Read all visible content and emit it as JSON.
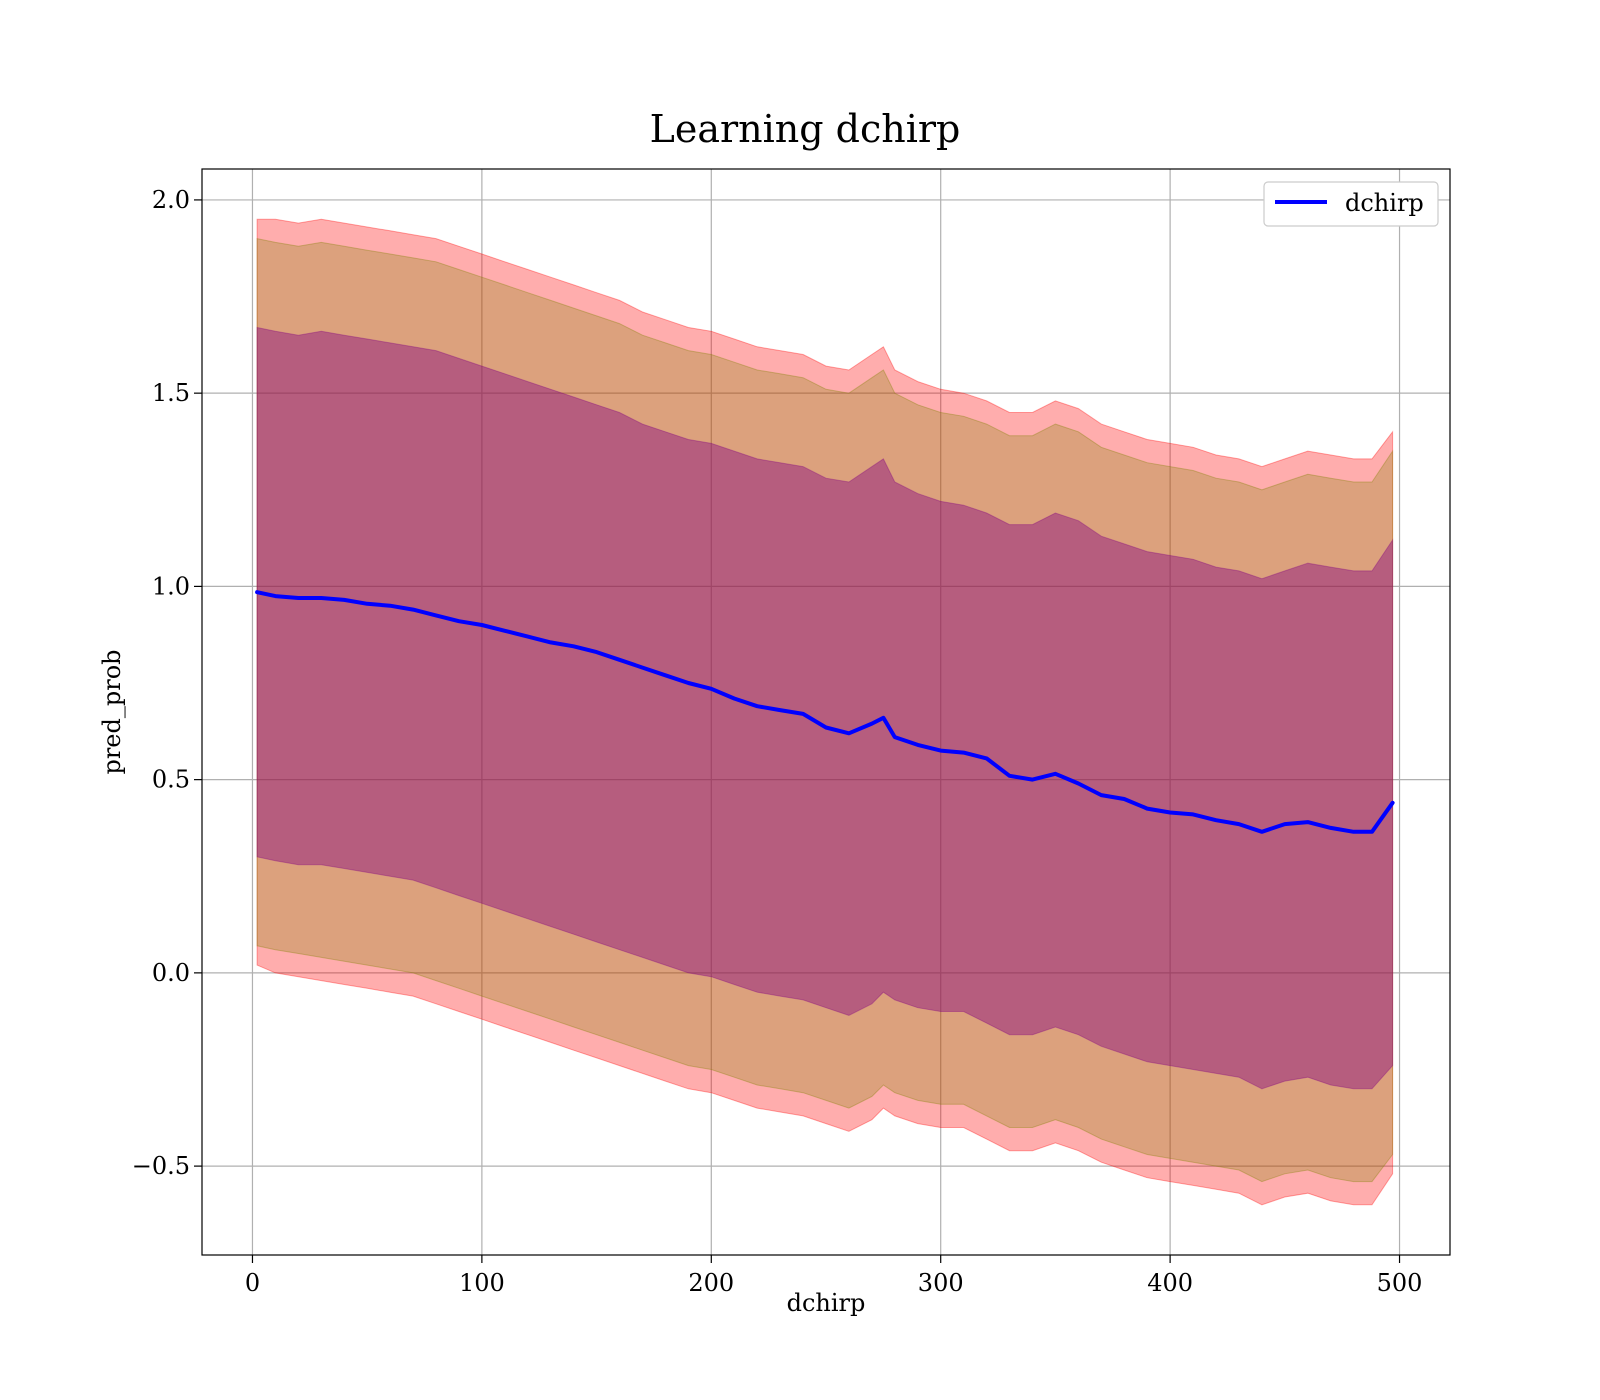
{
  "chart_data": {
    "type": "line",
    "title": "Learning dchirp",
    "xlabel": "dchirp",
    "ylabel": "pred_prob",
    "xlim": [
      -22,
      522
    ],
    "ylim": [
      -0.73,
      2.08
    ],
    "xticks": [
      0,
      100,
      200,
      300,
      400,
      500
    ],
    "xtick_labels": [
      "0",
      "100",
      "200",
      "300",
      "400",
      "500"
    ],
    "yticks": [
      -0.5,
      0.0,
      0.5,
      1.0,
      1.5,
      2.0
    ],
    "ytick_labels": [
      "−0.5",
      "0.0",
      "0.5",
      "1.0",
      "1.5",
      "2.0"
    ],
    "grid": true,
    "legend": {
      "position": "top-right",
      "entries": [
        "dchirp"
      ]
    },
    "colors": {
      "line": "#0000ff",
      "band_outer": "#ff0000",
      "band_middle": "#808000",
      "band_inner": "#800080",
      "grid": "#b0b0b0"
    },
    "series": [
      {
        "name": "dchirp",
        "x": [
          2,
          10,
          20,
          30,
          40,
          50,
          60,
          70,
          80,
          90,
          100,
          110,
          120,
          130,
          140,
          150,
          160,
          170,
          180,
          190,
          200,
          210,
          220,
          230,
          240,
          250,
          260,
          270,
          275,
          280,
          290,
          300,
          310,
          320,
          330,
          340,
          350,
          360,
          370,
          380,
          390,
          400,
          410,
          420,
          430,
          440,
          450,
          460,
          470,
          480,
          488,
          497
        ],
        "y": [
          0.985,
          0.975,
          0.97,
          0.97,
          0.965,
          0.955,
          0.95,
          0.94,
          0.925,
          0.91,
          0.9,
          0.885,
          0.87,
          0.855,
          0.845,
          0.83,
          0.81,
          0.79,
          0.77,
          0.75,
          0.735,
          0.71,
          0.69,
          0.68,
          0.67,
          0.635,
          0.62,
          0.645,
          0.66,
          0.61,
          0.59,
          0.575,
          0.57,
          0.555,
          0.51,
          0.5,
          0.515,
          0.49,
          0.46,
          0.45,
          0.425,
          0.415,
          0.41,
          0.395,
          0.385,
          0.365,
          0.385,
          0.39,
          0.375,
          0.365,
          0.365,
          0.44
        ]
      }
    ],
    "bands": [
      {
        "name": "outer",
        "lower": [
          0.02,
          0.0,
          -0.01,
          -0.02,
          -0.03,
          -0.04,
          -0.05,
          -0.06,
          -0.08,
          -0.1,
          -0.12,
          -0.14,
          -0.16,
          -0.18,
          -0.2,
          -0.22,
          -0.24,
          -0.26,
          -0.28,
          -0.3,
          -0.31,
          -0.33,
          -0.35,
          -0.36,
          -0.37,
          -0.39,
          -0.41,
          -0.38,
          -0.35,
          -0.37,
          -0.39,
          -0.4,
          -0.4,
          -0.43,
          -0.46,
          -0.46,
          -0.44,
          -0.46,
          -0.49,
          -0.51,
          -0.53,
          -0.54,
          -0.55,
          -0.56,
          -0.57,
          -0.6,
          -0.58,
          -0.57,
          -0.59,
          -0.6,
          -0.6,
          -0.52
        ],
        "upper": [
          1.95,
          1.95,
          1.94,
          1.95,
          1.94,
          1.93,
          1.92,
          1.91,
          1.9,
          1.88,
          1.86,
          1.84,
          1.82,
          1.8,
          1.78,
          1.76,
          1.74,
          1.71,
          1.69,
          1.67,
          1.66,
          1.64,
          1.62,
          1.61,
          1.6,
          1.57,
          1.56,
          1.6,
          1.62,
          1.56,
          1.53,
          1.51,
          1.5,
          1.48,
          1.45,
          1.45,
          1.48,
          1.46,
          1.42,
          1.4,
          1.38,
          1.37,
          1.36,
          1.34,
          1.33,
          1.31,
          1.33,
          1.35,
          1.34,
          1.33,
          1.33,
          1.4
        ]
      },
      {
        "name": "middle",
        "lower": [
          0.07,
          0.06,
          0.05,
          0.04,
          0.03,
          0.02,
          0.01,
          0.0,
          -0.02,
          -0.04,
          -0.06,
          -0.08,
          -0.1,
          -0.12,
          -0.14,
          -0.16,
          -0.18,
          -0.2,
          -0.22,
          -0.24,
          -0.25,
          -0.27,
          -0.29,
          -0.3,
          -0.31,
          -0.33,
          -0.35,
          -0.32,
          -0.29,
          -0.31,
          -0.33,
          -0.34,
          -0.34,
          -0.37,
          -0.4,
          -0.4,
          -0.38,
          -0.4,
          -0.43,
          -0.45,
          -0.47,
          -0.48,
          -0.49,
          -0.5,
          -0.51,
          -0.54,
          -0.52,
          -0.51,
          -0.53,
          -0.54,
          -0.54,
          -0.47
        ],
        "upper": [
          1.9,
          1.89,
          1.88,
          1.89,
          1.88,
          1.87,
          1.86,
          1.85,
          1.84,
          1.82,
          1.8,
          1.78,
          1.76,
          1.74,
          1.72,
          1.7,
          1.68,
          1.65,
          1.63,
          1.61,
          1.6,
          1.58,
          1.56,
          1.55,
          1.54,
          1.51,
          1.5,
          1.54,
          1.56,
          1.5,
          1.47,
          1.45,
          1.44,
          1.42,
          1.39,
          1.39,
          1.42,
          1.4,
          1.36,
          1.34,
          1.32,
          1.31,
          1.3,
          1.28,
          1.27,
          1.25,
          1.27,
          1.29,
          1.28,
          1.27,
          1.27,
          1.35
        ]
      },
      {
        "name": "inner",
        "lower": [
          0.3,
          0.29,
          0.28,
          0.28,
          0.27,
          0.26,
          0.25,
          0.24,
          0.22,
          0.2,
          0.18,
          0.16,
          0.14,
          0.12,
          0.1,
          0.08,
          0.06,
          0.04,
          0.02,
          0.0,
          -0.01,
          -0.03,
          -0.05,
          -0.06,
          -0.07,
          -0.09,
          -0.11,
          -0.08,
          -0.05,
          -0.07,
          -0.09,
          -0.1,
          -0.1,
          -0.13,
          -0.16,
          -0.16,
          -0.14,
          -0.16,
          -0.19,
          -0.21,
          -0.23,
          -0.24,
          -0.25,
          -0.26,
          -0.27,
          -0.3,
          -0.28,
          -0.27,
          -0.29,
          -0.3,
          -0.3,
          -0.24
        ],
        "upper": [
          1.67,
          1.66,
          1.65,
          1.66,
          1.65,
          1.64,
          1.63,
          1.62,
          1.61,
          1.59,
          1.57,
          1.55,
          1.53,
          1.51,
          1.49,
          1.47,
          1.45,
          1.42,
          1.4,
          1.38,
          1.37,
          1.35,
          1.33,
          1.32,
          1.31,
          1.28,
          1.27,
          1.31,
          1.33,
          1.27,
          1.24,
          1.22,
          1.21,
          1.19,
          1.16,
          1.16,
          1.19,
          1.17,
          1.13,
          1.11,
          1.09,
          1.08,
          1.07,
          1.05,
          1.04,
          1.02,
          1.04,
          1.06,
          1.05,
          1.04,
          1.04,
          1.12
        ]
      }
    ]
  }
}
